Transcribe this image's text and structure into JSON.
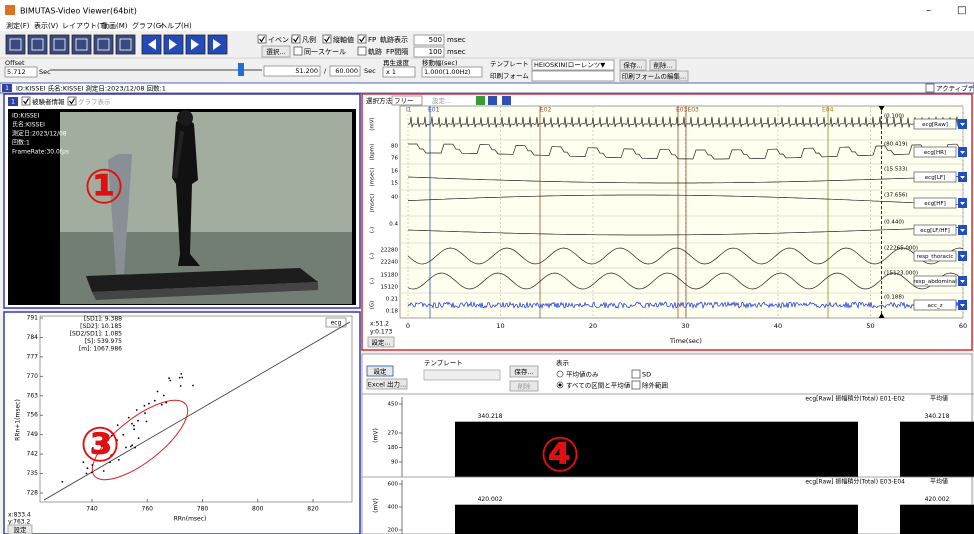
{
  "window": {
    "title": "BIMUTAS-Video Viewer(64bit)",
    "controls": [
      "–",
      "□"
    ]
  },
  "menu": [
    "測定(F)",
    "表示(V)",
    "レイアウト(T)",
    "動画(M)",
    "グラフ(G)",
    "ヘルプ(H)"
  ],
  "toolbar": {
    "event": "イベント",
    "legend": "凡例",
    "axis_value": "縦軸値",
    "fp": "FP",
    "trail_display": "軌跡表示",
    "trail_ms": "500",
    "trail_unit": "msec",
    "select": "選択...",
    "same_scale": "同一スケール",
    "trail": "軌跡",
    "fp_interval": "FP間隔",
    "fp_ms": "100",
    "fp_unit": "msec"
  },
  "playback": {
    "offset_label": "Offset",
    "offset_value": "5.712",
    "offset_unit": "Sec",
    "position": "51.200",
    "separator": "/",
    "duration": "60.000",
    "position_unit": "Sec",
    "speed_label": "再生速度",
    "speed_value": "x 1",
    "step_label": "移動幅(sec)",
    "step_value": "1.000(1.00Hz)",
    "template_label": "テンプレート",
    "template_value": "HEIOSKIN(ローレンツ▼",
    "save": "保存...",
    "delete": "削除...",
    "print_form_label": "印刷フォーム",
    "print_form_edit": "印刷フォームの編集..."
  },
  "info_bar": {
    "index": "1",
    "text": "ID:KISSEI 氏名:KISSEI 測定日:2023/12/08 回数:1",
    "active": "アクティブデー"
  },
  "video_panel": {
    "badge": "①",
    "index": "1",
    "subject_info": "被験者情報",
    "graph_display": "グラフ表示",
    "overlay": [
      "ID:KISSEI",
      "氏名:KISSEI",
      "測定日:2023/12/08",
      "回数:1",
      "FrameRate:30.0fps"
    ]
  },
  "graph_panel": {
    "badge": "②",
    "select_method": "選択方法",
    "select_value": "フリー",
    "settings": "設定...",
    "events": [
      "I1",
      "E01",
      "E02",
      "E03E03",
      "E04"
    ],
    "channels": [
      {
        "name": "ecg[Raw]",
        "unit": "(mV)",
        "value": "(0.100)"
      },
      {
        "name": "ecg[HR]",
        "unit": "(bpm)",
        "ticks": [
          "80",
          "76"
        ],
        "value": "(80.419)"
      },
      {
        "name": "ecg[LF]",
        "unit": "(msec)",
        "ticks": [
          "16",
          "15"
        ],
        "value": "(15.533)"
      },
      {
        "name": "ecg[HF]",
        "unit": "(msec)",
        "ticks": [
          "40"
        ],
        "value": "(37.656)"
      },
      {
        "name": "ecg[LF/HF]",
        "unit": "(-)",
        "ticks": [
          "0.4"
        ],
        "value": "(0.440)"
      },
      {
        "name": "resp_thoracic",
        "unit": "(-)",
        "ticks": [
          "22280",
          "22240"
        ],
        "value": "(22265.000)"
      },
      {
        "name": "resp_abdominal",
        "unit": "(-)",
        "ticks": [
          "15180",
          "15120"
        ],
        "value": "(15123.000)"
      },
      {
        "name": "acc_z",
        "unit": "(G)",
        "ticks": [
          "0.21",
          "0.18"
        ],
        "value": "(0.188)"
      }
    ],
    "xticks": [
      0,
      10,
      20,
      30,
      40,
      50,
      60
    ],
    "xlabel": "Time(sec)",
    "cursor_x": "x:51.2",
    "cursor_y": "y:0.173",
    "settings_button": "設定..."
  },
  "scatter_panel": {
    "badge": "③",
    "legend": "ecg",
    "stats": [
      "[SD1]: 9.388",
      "[SD2]: 10.185",
      "[SD2/SD1]: 1.085",
      "[S]: 539.975",
      "[m]: 1067.986"
    ],
    "yticks": [
      791,
      784,
      777,
      770,
      763,
      756,
      749,
      742,
      735,
      728
    ],
    "xticks": [
      740,
      760,
      780,
      800,
      820
    ],
    "xlabel": "RRn(msec)",
    "ylabel": "RRn+1(msec)",
    "cursor_x": "x:833.4",
    "cursor_y": "y:763.2",
    "settings": "設定"
  },
  "result_panel": {
    "badge": "④",
    "settings": "設定",
    "excel": "Excel 出力...",
    "template_label": "テンプレート",
    "save": "保存...",
    "delete": "削除",
    "display_label": "表示",
    "mean_only": "平均値のみ",
    "all_and_mean": "すべての区間と平均値",
    "sd": "SD",
    "excluded": "除外範囲",
    "charts": [
      {
        "title": "ecg[Raw] 振幅積分(Total) E01-E02",
        "mean_title": "平均値",
        "unit": "(mV)",
        "yticks": [
          450,
          270,
          180,
          90
        ],
        "value": 340.218
      },
      {
        "title": "ecg[Raw] 振幅積分(Total) E03-E04",
        "mean_title": "平均値",
        "unit": "(mV)",
        "yticks": [
          600,
          400,
          200
        ],
        "value": 420.002
      }
    ]
  }
}
